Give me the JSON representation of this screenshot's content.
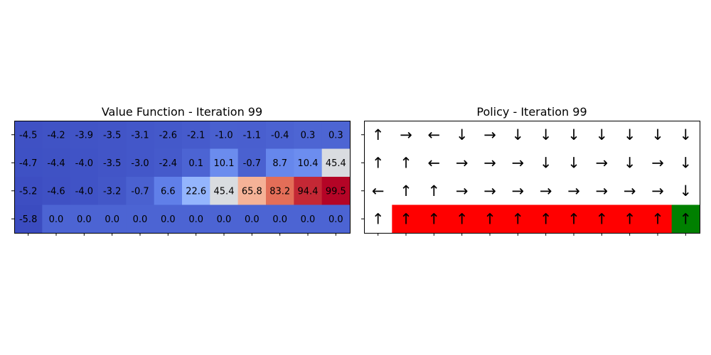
{
  "chart_data": [
    {
      "type": "heatmap",
      "title": "Value Function - Iteration 99",
      "colormap": "coolwarm",
      "rows": 4,
      "cols": 12,
      "values": [
        [
          -4.5,
          -4.2,
          -3.9,
          -3.5,
          -3.1,
          -2.6,
          -2.1,
          -1.0,
          -1.1,
          -0.4,
          0.3,
          0.3
        ],
        [
          -4.7,
          -4.4,
          -4.0,
          -3.5,
          -3.0,
          -2.4,
          0.1,
          10.1,
          -0.7,
          8.7,
          10.4,
          45.4
        ],
        [
          -5.2,
          -4.6,
          -4.0,
          -3.2,
          -0.7,
          6.6,
          22.6,
          45.4,
          65.8,
          83.2,
          94.4,
          99.5
        ],
        [
          -5.8,
          0.0,
          0.0,
          0.0,
          0.0,
          0.0,
          0.0,
          0.0,
          0.0,
          0.0,
          0.0,
          0.0
        ]
      ],
      "labels": [
        [
          "-4.5",
          "-4.2",
          "-3.9",
          "-3.5",
          "-3.1",
          "-2.6",
          "-2.1",
          "-1.0",
          "-1.1",
          "-0.4",
          "0.3",
          "0.3"
        ],
        [
          "-4.7",
          "-4.4",
          "-4.0",
          "-3.5",
          "-3.0",
          "-2.4",
          "0.1",
          "10.1",
          "-0.7",
          "8.7",
          "10.4",
          "45.4"
        ],
        [
          "-5.2",
          "-4.6",
          "-4.0",
          "-3.2",
          "-0.7",
          "6.6",
          "22.6",
          "45.4",
          "65.8",
          "83.2",
          "94.4",
          "99.5"
        ],
        [
          "-5.8",
          "0.0",
          "0.0",
          "0.0",
          "0.0",
          "0.0",
          "0.0",
          "0.0",
          "0.0",
          "0.0",
          "0.0",
          "0.0"
        ]
      ],
      "vmin": -5.8,
      "vmax": 99.5,
      "tick_labels_visible": false
    },
    {
      "type": "heatmap",
      "title": "Policy - Iteration 99",
      "rows": 4,
      "cols": 12,
      "arrows": [
        [
          "↑",
          "→",
          "←",
          "↓",
          "→",
          "↓",
          "↓",
          "↓",
          "↓",
          "↓",
          "↓",
          "↓"
        ],
        [
          "↑",
          "↑",
          "←",
          "→",
          "→",
          "→",
          "↓",
          "↓",
          "→",
          "↓",
          "→",
          "↓"
        ],
        [
          "←",
          "↑",
          "↑",
          "→",
          "→",
          "→",
          "→",
          "→",
          "→",
          "→",
          "→",
          "↓"
        ],
        [
          "↑",
          "↑",
          "↑",
          "↑",
          "↑",
          "↑",
          "↑",
          "↑",
          "↑",
          "↑",
          "↑",
          "↑"
        ]
      ],
      "cell_types": [
        [
          "empty",
          "empty",
          "empty",
          "empty",
          "empty",
          "empty",
          "empty",
          "empty",
          "empty",
          "empty",
          "empty",
          "empty"
        ],
        [
          "empty",
          "empty",
          "empty",
          "empty",
          "empty",
          "empty",
          "empty",
          "empty",
          "empty",
          "empty",
          "empty",
          "empty"
        ],
        [
          "empty",
          "empty",
          "empty",
          "empty",
          "empty",
          "empty",
          "empty",
          "empty",
          "empty",
          "empty",
          "empty",
          "empty"
        ],
        [
          "empty",
          "cliff",
          "cliff",
          "cliff",
          "cliff",
          "cliff",
          "cliff",
          "cliff",
          "cliff",
          "cliff",
          "cliff",
          "goal"
        ]
      ],
      "colors": {
        "empty": "#ffffff",
        "cliff": "#ff0000",
        "goal": "#008000"
      },
      "tick_labels_visible": false
    }
  ]
}
